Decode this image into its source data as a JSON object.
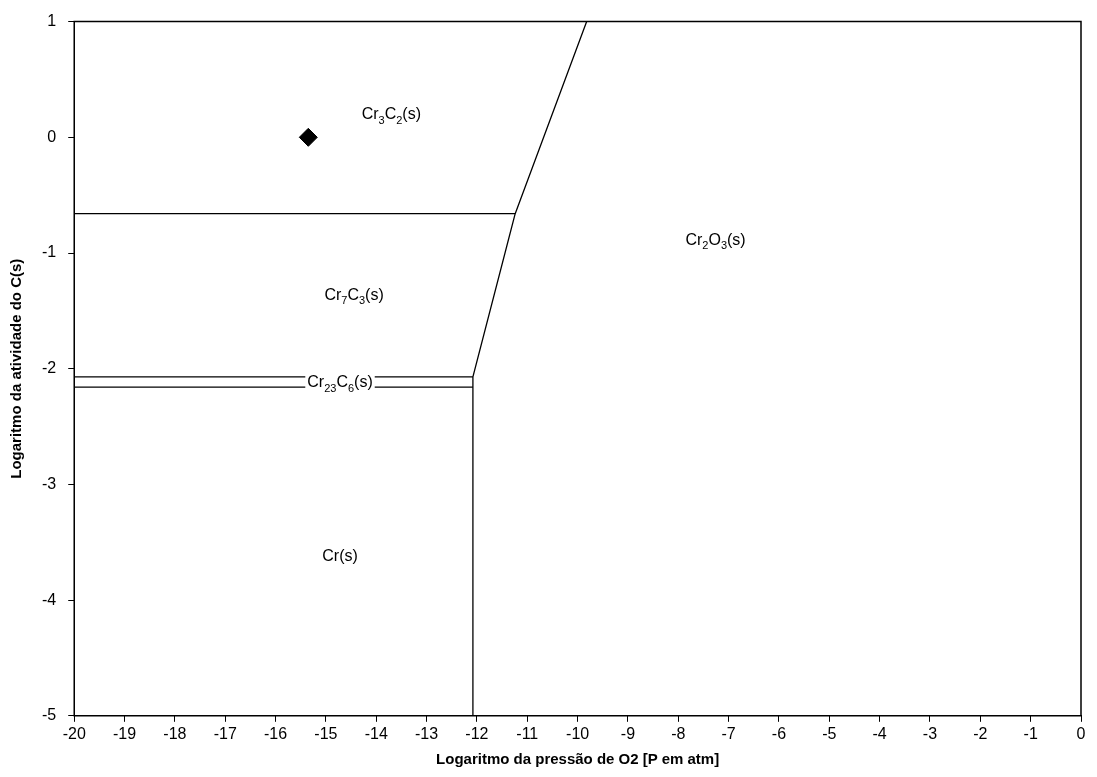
{
  "chart_data": {
    "type": "line",
    "xlabel": "Logaritmo da pressão de O2 [P em atm]",
    "ylabel": "Logaritmo da atividade do C(s)",
    "xlim": [
      -20,
      0
    ],
    "xticks": [
      -20,
      -19,
      -18,
      -17,
      -16,
      -15,
      -14,
      -13,
      -12,
      -11,
      -10,
      -9,
      -8,
      -7,
      -6,
      -5,
      -4,
      -3,
      -2,
      -1,
      0
    ],
    "ylim": [
      -5,
      1
    ],
    "yticks": [
      -5,
      -4,
      -3,
      -2,
      -1,
      0,
      1
    ],
    "grid": false,
    "legend": false,
    "marker": "none",
    "line_style": "solid",
    "series": [
      {
        "color": "#000000",
        "x": [
          -20,
          -11.24
        ],
        "values": [
          -0.66,
          -0.66
        ]
      },
      {
        "color": "#000000",
        "x": [
          -20,
          -12.08
        ],
        "values": [
          -2.07,
          -2.07
        ]
      },
      {
        "color": "#000000",
        "x": [
          -20,
          -12.08
        ],
        "values": [
          -2.16,
          -2.16
        ]
      },
      {
        "color": "#000000",
        "x": [
          -9.82,
          -11.24,
          -12.08,
          -12.08
        ],
        "values": [
          1,
          -0.66,
          -2.07,
          -5
        ]
      },
      {
        "type": "scatter",
        "marker": "diamond",
        "color": "#000000",
        "x": [
          -15.35
        ],
        "values": [
          0
        ]
      }
    ],
    "annotations": [
      "Cr$_{3}$C$_{2}$(s)",
      "Cr$_{2}$O$_{3}$(s)",
      "Cr$_{7}$C$_{3}$(s)",
      "Cr$_{23}$C$_{6}$(s)",
      "Cr(s)"
    ]
  }
}
